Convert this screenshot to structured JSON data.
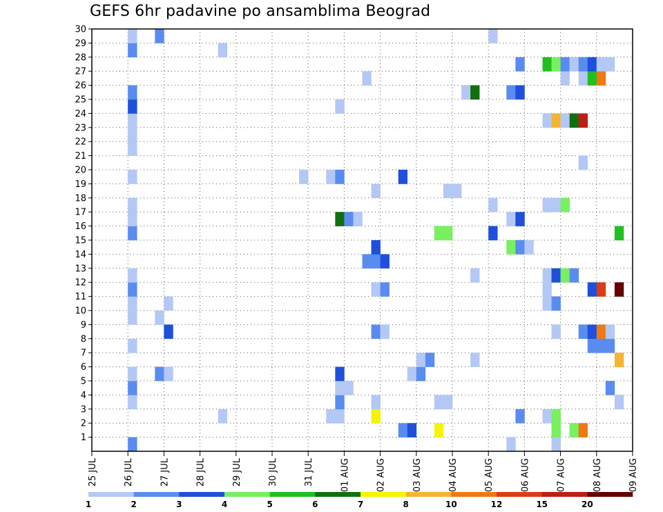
{
  "chart_data": {
    "type": "heatmap",
    "title": "GEFS 6hr padavine po ansamblima Beograd",
    "xlabel": "",
    "ylabel": "",
    "x_tick_labels": [
      "25 JUL",
      "26 JUL",
      "27 JUL",
      "28 JUL",
      "29 JUL",
      "30 JUL",
      "31 JUL",
      "01 AUG",
      "02 AUG",
      "03 AUG",
      "04 AUG",
      "05 AUG",
      "06 AUG",
      "07 AUG",
      "08 AUG",
      "09 AUG"
    ],
    "x_unit": "6-hour steps from 25 JUL 00Z",
    "xlim": [
      0,
      60
    ],
    "ylim": [
      0,
      30
    ],
    "y_tick_labels": [
      "1",
      "2",
      "3",
      "4",
      "5",
      "6",
      "7",
      "8",
      "9",
      "10",
      "11",
      "12",
      "13",
      "14",
      "15",
      "16",
      "17",
      "18",
      "19",
      "20",
      "21",
      "22",
      "23",
      "24",
      "25",
      "26",
      "27",
      "28",
      "29",
      "30"
    ],
    "grid": true,
    "legend": {
      "position": "bottom",
      "labels": [
        "1",
        "2",
        "3",
        "4",
        "5",
        "6",
        "7",
        "8",
        "10",
        "12",
        "15",
        "20"
      ],
      "colors": [
        "#b4c8f5",
        "#5a8cf0",
        "#1e50dc",
        "#78f060",
        "#20c020",
        "#107010",
        "#f5f500",
        "#f5b432",
        "#f07814",
        "#dc3c14",
        "#be1e14",
        "#640000"
      ]
    },
    "points": [
      [
        4,
        0,
        2
      ],
      [
        4,
        3,
        1
      ],
      [
        4,
        4,
        2
      ],
      [
        4,
        5,
        1
      ],
      [
        4,
        7,
        1
      ],
      [
        4,
        9,
        1
      ],
      [
        4,
        10,
        1
      ],
      [
        4,
        11,
        2
      ],
      [
        4,
        12,
        1
      ],
      [
        4,
        15,
        2
      ],
      [
        4,
        16,
        1
      ],
      [
        4,
        17,
        1
      ],
      [
        4,
        19,
        1
      ],
      [
        4,
        21,
        1
      ],
      [
        4,
        22,
        1
      ],
      [
        4,
        23,
        1
      ],
      [
        4,
        24,
        3
      ],
      [
        4,
        25,
        2
      ],
      [
        4,
        28,
        2
      ],
      [
        4,
        29,
        1
      ],
      [
        7,
        5,
        2
      ],
      [
        7,
        9,
        1
      ],
      [
        7,
        29,
        2
      ],
      [
        8,
        5,
        1
      ],
      [
        8,
        8,
        3
      ],
      [
        8,
        10,
        1
      ],
      [
        14,
        2,
        1
      ],
      [
        14,
        28,
        1
      ],
      [
        23,
        19,
        1
      ],
      [
        26,
        2,
        1
      ],
      [
        26,
        19,
        1
      ],
      [
        27,
        2,
        1
      ],
      [
        27,
        3,
        2
      ],
      [
        27,
        4,
        1
      ],
      [
        27,
        5,
        3
      ],
      [
        27,
        16,
        6
      ],
      [
        27,
        19,
        2
      ],
      [
        27,
        24,
        1
      ],
      [
        28,
        4,
        1
      ],
      [
        28,
        16,
        2
      ],
      [
        29,
        16,
        1
      ],
      [
        30,
        13,
        2
      ],
      [
        30,
        26,
        1
      ],
      [
        31,
        2,
        7
      ],
      [
        31,
        3,
        1
      ],
      [
        31,
        8,
        2
      ],
      [
        31,
        11,
        1
      ],
      [
        31,
        13,
        2
      ],
      [
        31,
        14,
        3
      ],
      [
        31,
        18,
        1
      ],
      [
        32,
        8,
        1
      ],
      [
        32,
        11,
        2
      ],
      [
        32,
        13,
        3
      ],
      [
        34,
        1,
        2
      ],
      [
        34,
        19,
        3
      ],
      [
        35,
        1,
        3
      ],
      [
        35,
        5,
        1
      ],
      [
        36,
        5,
        2
      ],
      [
        36,
        6,
        1
      ],
      [
        37,
        6,
        2
      ],
      [
        38,
        1,
        7
      ],
      [
        38,
        3,
        1
      ],
      [
        38,
        15,
        4
      ],
      [
        39,
        3,
        1
      ],
      [
        39,
        15,
        4
      ],
      [
        39,
        18,
        1
      ],
      [
        40,
        18,
        1
      ],
      [
        41,
        25,
        1
      ],
      [
        42,
        6,
        1
      ],
      [
        42,
        12,
        1
      ],
      [
        42,
        25,
        6
      ],
      [
        44,
        15,
        3
      ],
      [
        44,
        17,
        1
      ],
      [
        44,
        29,
        1
      ],
      [
        46,
        0,
        1
      ],
      [
        46,
        14,
        4
      ],
      [
        46,
        16,
        1
      ],
      [
        46,
        25,
        2
      ],
      [
        47,
        2,
        2
      ],
      [
        47,
        14,
        2
      ],
      [
        47,
        16,
        3
      ],
      [
        47,
        25,
        3
      ],
      [
        47,
        27,
        2
      ],
      [
        48,
        14,
        1
      ],
      [
        50,
        2,
        1
      ],
      [
        50,
        10,
        1
      ],
      [
        50,
        11,
        1
      ],
      [
        50,
        12,
        1
      ],
      [
        50,
        17,
        1
      ],
      [
        50,
        23,
        1
      ],
      [
        50,
        27,
        5
      ],
      [
        51,
        0,
        1
      ],
      [
        51,
        1,
        4
      ],
      [
        51,
        2,
        4
      ],
      [
        51,
        8,
        1
      ],
      [
        51,
        10,
        2
      ],
      [
        51,
        12,
        3
      ],
      [
        51,
        17,
        1
      ],
      [
        51,
        23,
        8
      ],
      [
        51,
        27,
        4
      ],
      [
        52,
        12,
        4
      ],
      [
        52,
        17,
        4
      ],
      [
        52,
        23,
        1
      ],
      [
        52,
        26,
        1
      ],
      [
        52,
        27,
        2
      ],
      [
        53,
        1,
        4
      ],
      [
        53,
        12,
        2
      ],
      [
        53,
        23,
        6
      ],
      [
        53,
        27,
        1
      ],
      [
        54,
        1,
        10
      ],
      [
        54,
        8,
        2
      ],
      [
        54,
        20,
        1
      ],
      [
        54,
        23,
        15
      ],
      [
        54,
        26,
        1
      ],
      [
        54,
        27,
        2
      ],
      [
        55,
        7,
        2
      ],
      [
        55,
        8,
        3
      ],
      [
        55,
        11,
        3
      ],
      [
        55,
        26,
        5
      ],
      [
        55,
        27,
        3
      ],
      [
        56,
        7,
        2
      ],
      [
        56,
        8,
        10
      ],
      [
        56,
        11,
        12
      ],
      [
        56,
        26,
        10
      ],
      [
        56,
        27,
        1
      ],
      [
        57,
        4,
        2
      ],
      [
        57,
        7,
        2
      ],
      [
        57,
        8,
        1
      ],
      [
        57,
        27,
        1
      ],
      [
        58,
        3,
        1
      ],
      [
        58,
        6,
        8
      ],
      [
        58,
        11,
        20
      ],
      [
        58,
        15,
        5
      ]
    ]
  }
}
